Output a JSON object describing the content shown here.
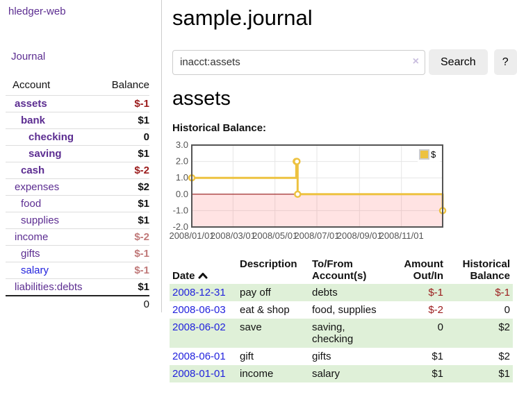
{
  "sidebar": {
    "app_title": "hledger-web",
    "journal_link": "Journal",
    "accounts": {
      "header_account": "Account",
      "header_balance": "Balance",
      "rows": [
        {
          "name": "assets",
          "balance": "$-1",
          "depth": 1,
          "bold": true,
          "neg": "strong"
        },
        {
          "name": "bank",
          "balance": "$1",
          "depth": 2,
          "bold": true,
          "neg": "none"
        },
        {
          "name": "checking",
          "balance": "0",
          "depth": 3,
          "bold": true,
          "neg": "none"
        },
        {
          "name": "saving",
          "balance": "$1",
          "depth": 3,
          "bold": true,
          "neg": "none"
        },
        {
          "name": "cash",
          "balance": "$-2",
          "depth": 2,
          "bold": true,
          "neg": "strong"
        },
        {
          "name": "expenses",
          "balance": "$2",
          "depth": 1,
          "bold": false,
          "neg": "none"
        },
        {
          "name": "food",
          "balance": "$1",
          "depth": 2,
          "bold": false,
          "neg": "none"
        },
        {
          "name": "supplies",
          "balance": "$1",
          "depth": 2,
          "bold": false,
          "neg": "none"
        },
        {
          "name": "income",
          "balance": "$-2",
          "depth": 1,
          "bold": false,
          "neg": "soft"
        },
        {
          "name": "gifts",
          "balance": "$-1",
          "depth": 2,
          "bold": false,
          "neg": "soft"
        },
        {
          "name": "salary",
          "balance": "$-1",
          "depth": 2,
          "bold": false,
          "neg": "soft",
          "blue": true
        },
        {
          "name": "liabilities:debts",
          "balance": "$1",
          "depth": 1,
          "bold": false,
          "neg": "none"
        }
      ],
      "total": "0"
    }
  },
  "main": {
    "title": "sample.journal",
    "search": {
      "value": "inacct:assets",
      "clear_icon": "×",
      "search_button": "Search",
      "help_button": "?"
    },
    "account_heading": "assets",
    "chart_label": "Historical Balance:",
    "register": {
      "headers": {
        "date": "Date",
        "sort_icon": "chevron-up",
        "description": "Description",
        "accounts": "To/From\nAccount(s)",
        "amount": "Amount\nOut/In",
        "balance": "Historical\nBalance"
      },
      "rows": [
        {
          "date": "2008-12-31",
          "description": "pay off",
          "accounts": "debts",
          "amount": "$-1",
          "balance": "$-1",
          "amount_neg": true,
          "balance_neg": true
        },
        {
          "date": "2008-06-03",
          "description": "eat & shop",
          "accounts": "food, supplies",
          "amount": "$-2",
          "balance": "0",
          "amount_neg": true,
          "balance_neg": false
        },
        {
          "date": "2008-06-02",
          "description": "save",
          "accounts": "saving,\nchecking",
          "amount": "0",
          "balance": "$2",
          "amount_neg": false,
          "balance_neg": false
        },
        {
          "date": "2008-06-01",
          "description": "gift",
          "accounts": "gifts",
          "amount": "$1",
          "balance": "$2",
          "amount_neg": false,
          "balance_neg": false
        },
        {
          "date": "2008-01-01",
          "description": "income",
          "accounts": "salary",
          "amount": "$1",
          "balance": "$1",
          "amount_neg": false,
          "balance_neg": false
        }
      ]
    }
  },
  "chart_data": {
    "type": "line",
    "step": true,
    "title": "Historical Balance",
    "series": [
      {
        "name": "$",
        "color": "#edc240",
        "points": [
          [
            "2008-01-01",
            1
          ],
          [
            "2008-06-01",
            2
          ],
          [
            "2008-06-02",
            2
          ],
          [
            "2008-06-03",
            0
          ],
          [
            "2008-12-31",
            -1
          ]
        ]
      }
    ],
    "x_range": [
      "2008-01-01",
      "2008-12-31"
    ],
    "x_tick_labels": [
      "2008/01/01",
      "2008/03/01",
      "2008/05/01",
      "2008/07/01",
      "2008/09/01",
      "2008/11/01"
    ],
    "y_ticks": [
      "3.0",
      "2.0",
      "1.0",
      "0.0",
      "-1.0",
      "-2.0"
    ],
    "ylim": [
      -2,
      3
    ],
    "grid": true,
    "legend_label": "$",
    "legend_position": "top-right",
    "negative_region_fill": "rgba(255,80,80,0.16)",
    "zero_line_color": "#8b0000"
  },
  "colors": {
    "accent_purple": "#5c2d91",
    "link_blue": "#2222dd",
    "negative_strong": "#9b1c1c",
    "negative_soft": "#c07979",
    "row_stripe_green": "#dff0d8",
    "chart_line": "#edc240",
    "chart_border": "#545454",
    "grid_line": "#e6e6e6"
  }
}
